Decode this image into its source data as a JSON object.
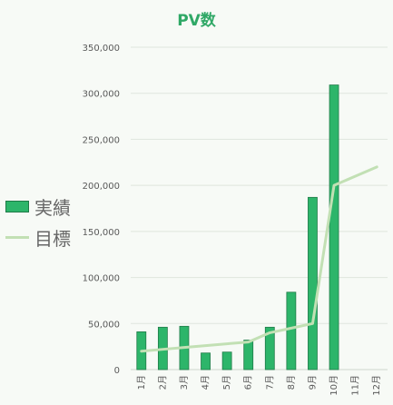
{
  "chart_data": {
    "type": "bar",
    "title": "PV数",
    "categories": [
      "1月",
      "2月",
      "3月",
      "4月",
      "5月",
      "6月",
      "7月",
      "8月",
      "9月",
      "10月",
      "11月",
      "12月"
    ],
    "series": [
      {
        "name": "実績",
        "kind": "bar",
        "color": "#2db56a",
        "values": [
          41000,
          46000,
          47000,
          18000,
          19000,
          32000,
          46000,
          84000,
          187000,
          309000,
          null,
          null
        ]
      },
      {
        "name": "目標",
        "kind": "line",
        "color": "#c2e0b4",
        "values": [
          20000,
          22000,
          24000,
          26000,
          28000,
          30000,
          40000,
          45000,
          50000,
          200000,
          210000,
          220000
        ]
      }
    ],
    "ylim": [
      0,
      350000
    ],
    "yticks": [
      0,
      50000,
      100000,
      150000,
      200000,
      250000,
      300000,
      350000
    ],
    "ytick_labels": [
      "0",
      "50,000",
      "100,000",
      "150,000",
      "200,000",
      "250,000",
      "300,000",
      "350,000"
    ],
    "grid": true,
    "legend_position": "left"
  }
}
